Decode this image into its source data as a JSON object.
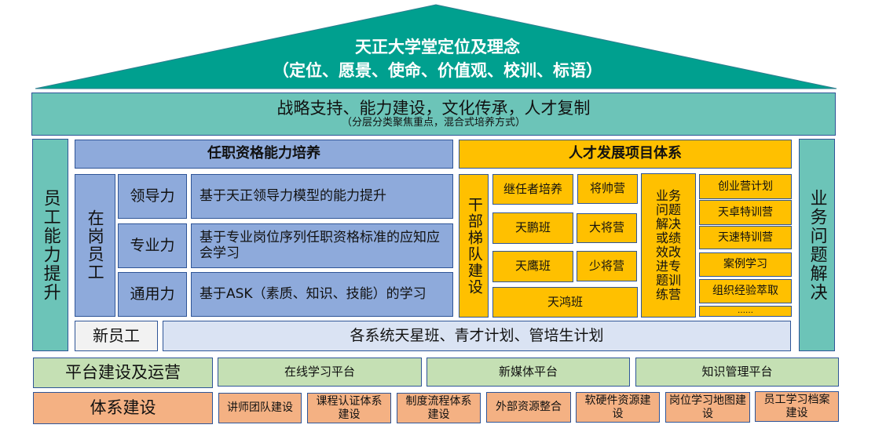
{
  "colors": {
    "roof": "#00a08f",
    "teal": "#6cc4b8",
    "blue": "#8eaadb",
    "yellow": "#ffc000",
    "green": "#c5e0b4",
    "orange": "#f4b183",
    "light": "#dae3f3",
    "border": "#2f5597"
  },
  "roof": {
    "title": "天正大学堂定位及理念",
    "subtitle": "（定位、愿景、使命、价值观、校训、标语）"
  },
  "band": {
    "title": "战略支持、能力建设，文化传承，人才复制",
    "subtitle": "（分层分类聚焦重点，混合式培养方式）"
  },
  "left_pillar": "员工能力提升",
  "right_pillar": "业务问题解决",
  "qualification": {
    "header": "任职资格能力培养",
    "group": "在岗员工",
    "rows": [
      {
        "label": "领导力",
        "desc": "基于天正领导力模型的能力提升"
      },
      {
        "label": "专业力",
        "desc": "基于专业岗位序列任职资格标准的应知应会学习"
      },
      {
        "label": "通用力",
        "desc": "基于ASK（素质、知识、技能）的学习"
      }
    ],
    "new_staff": "新员工",
    "new_staff_desc": "各系统天星班、青才计划、管培生计划"
  },
  "talent": {
    "header": "人才发展项目体系",
    "cadre": "干部梯队建设",
    "programs": [
      "继任者培养",
      "将帅营",
      "天鹏班",
      "大将营",
      "天鹰班",
      "少将营",
      "天鸿班"
    ],
    "business": "业务问题解决或绩效改进专题训练营",
    "list": [
      "创业营计划",
      "天卓特训营",
      "天速特训营",
      "案例学习",
      "组织经验萃取",
      "……"
    ]
  },
  "platform": {
    "label": "平台建设及运营",
    "items": [
      "在线学习平台",
      "新媒体平台",
      "知识管理平台"
    ]
  },
  "system": {
    "label": "体系建设",
    "items": [
      "讲师团队建设",
      "课程认证体系建设",
      "制度流程体系建设",
      "外部资源整合",
      "软硬件资源建设",
      "岗位学习地图建设",
      "员工学习档案建设"
    ]
  }
}
